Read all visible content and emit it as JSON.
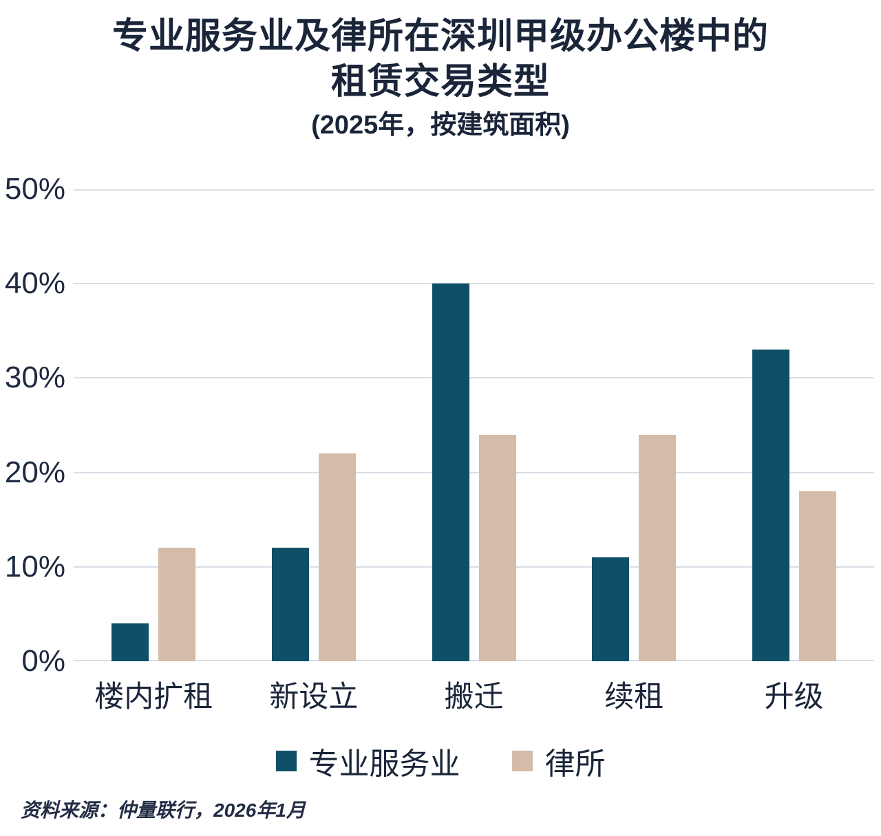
{
  "title": {
    "line1": "专业服务业及律所在深圳甲级办公楼中的",
    "line2": "租赁交易类型",
    "subtitle": "(2025年，按建筑面积)"
  },
  "source": "资料来源：仲量联行，2026年1月",
  "colors": {
    "series1": "#104f68",
    "series2": "#d5bca9",
    "text": "#1a2539",
    "gridline": "#d8dee6",
    "background": "#ffffff"
  },
  "chart_data": {
    "type": "bar",
    "title": "专业服务业及律所在深圳甲级办公楼中的租赁交易类型",
    "subtitle": "(2025年，按建筑面积)",
    "categories": [
      "楼内扩租",
      "新设立",
      "搬迁",
      "续租",
      "升级"
    ],
    "series": [
      {
        "name": "专业服务业",
        "color": "#104f68",
        "values": [
          4,
          12,
          40,
          11,
          33
        ]
      },
      {
        "name": "律所",
        "color": "#d5bca9",
        "values": [
          12,
          22,
          24,
          24,
          18
        ]
      }
    ],
    "xlabel": "",
    "ylabel": "",
    "ylim": [
      0,
      50
    ],
    "yticks": [
      0,
      10,
      20,
      30,
      40,
      50
    ],
    "ytick_format": "{v}%",
    "grid": "horizontal",
    "legend_position": "bottom"
  }
}
